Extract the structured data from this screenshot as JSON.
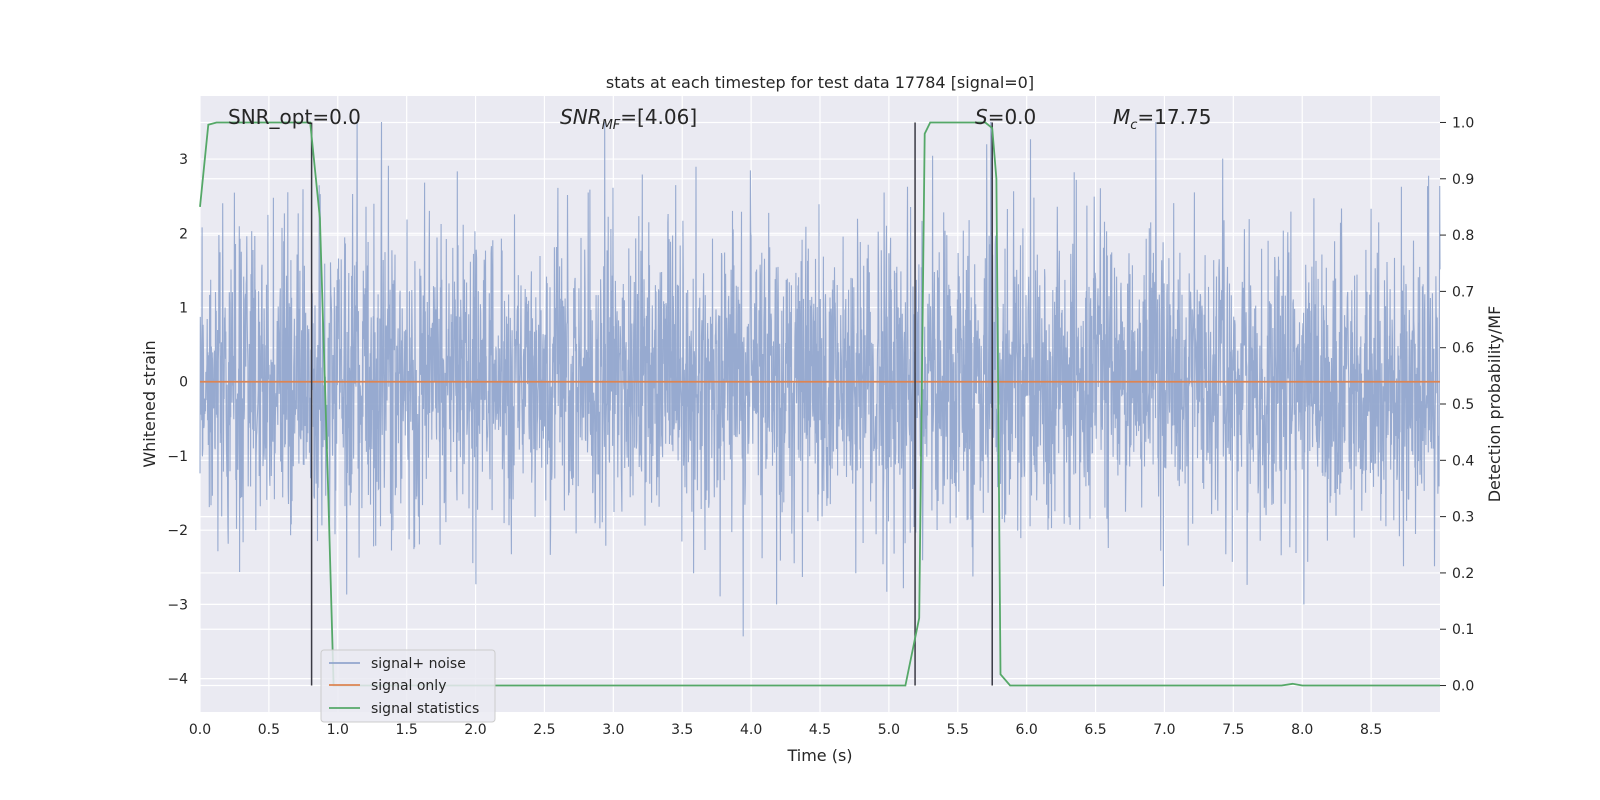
{
  "chart_data": {
    "type": "line",
    "title": "stats at each timestep for test data 17784 [signal=0]",
    "xlabel": "Time (s)",
    "ylabel": "Whitened strain",
    "y2label": "Detection probability/MF",
    "xlim": [
      0,
      9.0
    ],
    "ylim": [
      -4.45,
      3.85
    ],
    "y2lim": [
      -0.047,
      1.047
    ],
    "grid": true,
    "legend_position": "lower-left",
    "x_ticks": [
      "0.0",
      "0.5",
      "1.0",
      "1.5",
      "2.0",
      "2.5",
      "3.0",
      "3.5",
      "4.0",
      "4.5",
      "5.0",
      "5.5",
      "6.0",
      "6.5",
      "7.0",
      "7.5",
      "8.0",
      "8.5"
    ],
    "y_ticks": [
      "−4",
      "−3",
      "−2",
      "−1",
      "0",
      "1",
      "2",
      "3"
    ],
    "y2_ticks": [
      "0.0",
      "0.1",
      "0.2",
      "0.3",
      "0.4",
      "0.5",
      "0.6",
      "0.7",
      "0.8",
      "0.9",
      "1.0"
    ],
    "annotations": {
      "snr_opt": "SNR_opt=0.0",
      "snr_mf_main": "SNR",
      "snr_mf_sub": "MF",
      "snr_mf_value": "=[4.06]",
      "s_main": "S",
      "s_value": "=0.0",
      "mc_main": "M",
      "mc_sub": "c",
      "mc_value": "=17.75"
    },
    "series": [
      {
        "name": "signal+ noise",
        "color": "#92a6cd",
        "axis": "left",
        "description_points": "dense whitened noise, approx. gaussian with sigma ~1, range about -3.8 to 3.5 over 0-9 s"
      },
      {
        "name": "signal only",
        "color": "#dd8452",
        "axis": "left",
        "x": [
          0,
          9.0
        ],
        "y": [
          0,
          0
        ]
      },
      {
        "name": "signal statistics",
        "color": "#55a868",
        "axis": "right",
        "x": [
          0.0,
          0.06,
          0.12,
          0.5,
          0.8,
          0.87,
          0.93,
          0.97,
          1.2,
          2.0,
          3.0,
          4.0,
          5.0,
          5.12,
          5.22,
          5.26,
          5.3,
          5.7,
          5.75,
          5.78,
          5.81,
          5.88,
          6.5,
          7.0,
          7.85,
          7.93,
          8.0,
          9.0
        ],
        "y": [
          0.85,
          0.996,
          1.0,
          1.0,
          1.0,
          0.83,
          0.35,
          0.0,
          0.0,
          0.0,
          0.0,
          0.0,
          0.0,
          0.0,
          0.12,
          0.98,
          1.0,
          1.0,
          0.99,
          0.9,
          0.02,
          0.0,
          0.0,
          0.0,
          0.0,
          0.003,
          0.0,
          0.0
        ]
      }
    ],
    "vertical_markers": [
      0.81,
      5.19,
      5.75
    ]
  }
}
